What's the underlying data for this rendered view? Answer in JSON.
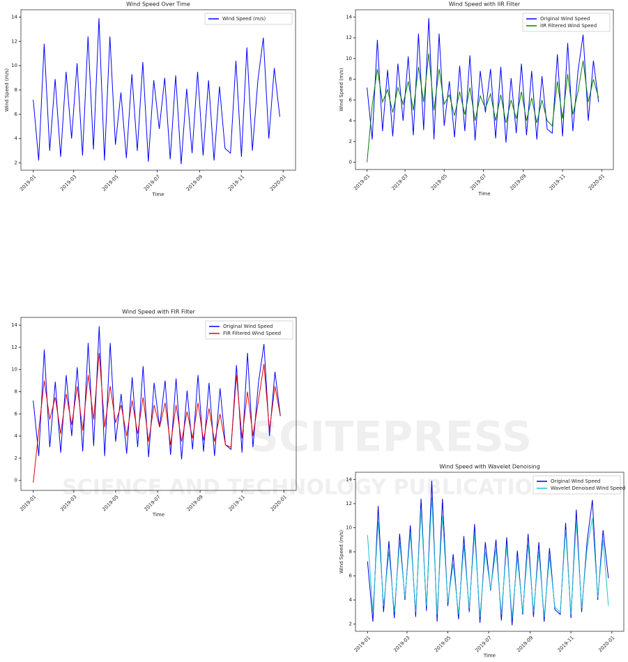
{
  "chart_data": [
    {
      "type": "line",
      "title": "Wind Speed Over Time",
      "xlabel": "Time",
      "ylabel": "Wind Speed (m/s)",
      "legend": "upper right",
      "x": [
        0,
        8,
        16,
        24,
        32,
        40,
        48,
        56,
        64,
        72,
        80,
        88,
        96,
        104,
        112,
        120,
        128,
        136,
        144,
        152,
        160,
        168,
        176,
        184,
        192,
        200,
        208,
        216,
        224,
        232,
        240,
        248,
        256,
        264,
        272,
        280,
        288,
        296,
        304,
        312,
        320,
        328,
        336,
        344,
        352,
        360
      ],
      "xlim": [
        -18,
        383
      ],
      "xticks": [
        {
          "value": 0,
          "label": "2019-01"
        },
        {
          "value": 59,
          "label": "2019-03"
        },
        {
          "value": 120,
          "label": "2019-05"
        },
        {
          "value": 181,
          "label": "2019-07"
        },
        {
          "value": 243,
          "label": "2019-09"
        },
        {
          "value": 304,
          "label": "2019-11"
        },
        {
          "value": 365,
          "label": "2020-01"
        }
      ],
      "ylim": [
        1.4,
        14.6
      ],
      "yticks": [
        2,
        4,
        6,
        8,
        10,
        12,
        14
      ],
      "series": [
        {
          "name": "Wind Speed (m/s)",
          "color": "#0000ff",
          "values": [
            7.2,
            2.2,
            11.8,
            3.0,
            8.9,
            2.5,
            9.5,
            4.0,
            10.2,
            2.6,
            12.4,
            3.1,
            13.9,
            2.2,
            12.4,
            3.5,
            7.8,
            2.4,
            9.3,
            3.0,
            10.3,
            2.1,
            8.8,
            4.8,
            9.0,
            2.3,
            9.2,
            1.9,
            8.1,
            2.8,
            9.5,
            2.6,
            8.8,
            2.2,
            8.3,
            3.2,
            2.8,
            10.4,
            2.5,
            11.5,
            3.0,
            8.8,
            12.3,
            4.0,
            9.8,
            5.8
          ]
        }
      ]
    },
    {
      "type": "line",
      "title": "Wind Speed with IIR Filter",
      "xlabel": "Time",
      "ylabel": "Wind Speed (m/s)",
      "legend": "upper right",
      "x": [
        0,
        8,
        16,
        24,
        32,
        40,
        48,
        56,
        64,
        72,
        80,
        88,
        96,
        104,
        112,
        120,
        128,
        136,
        144,
        152,
        160,
        168,
        176,
        184,
        192,
        200,
        208,
        216,
        224,
        232,
        240,
        248,
        256,
        264,
        272,
        280,
        288,
        296,
        304,
        312,
        320,
        328,
        336,
        344,
        352,
        360
      ],
      "xlim": [
        -18,
        383
      ],
      "xticks": [
        {
          "value": 0,
          "label": "2019-01"
        },
        {
          "value": 59,
          "label": "2019-03"
        },
        {
          "value": 120,
          "label": "2019-05"
        },
        {
          "value": 181,
          "label": "2019-07"
        },
        {
          "value": 243,
          "label": "2019-09"
        },
        {
          "value": 304,
          "label": "2019-11"
        },
        {
          "value": 365,
          "label": "2020-01"
        }
      ],
      "ylim": [
        -0.7,
        14.7
      ],
      "yticks": [
        0,
        2,
        4,
        6,
        8,
        10,
        12,
        14
      ],
      "series": [
        {
          "name": "Original Wind Speed",
          "color": "#0000ff",
          "values": [
            7.2,
            2.2,
            11.8,
            3.0,
            8.9,
            2.5,
            9.5,
            4.0,
            10.2,
            2.6,
            12.4,
            3.1,
            13.9,
            2.2,
            12.4,
            3.5,
            7.8,
            2.4,
            9.3,
            3.0,
            10.3,
            2.1,
            8.8,
            4.8,
            9.0,
            2.3,
            9.2,
            1.9,
            8.1,
            2.8,
            9.5,
            2.6,
            8.8,
            2.2,
            8.3,
            3.2,
            2.8,
            10.4,
            2.5,
            11.5,
            3.0,
            8.8,
            12.3,
            4.0,
            9.8,
            5.8
          ]
        },
        {
          "name": "IIR Filtered Wind Speed",
          "color": "#008000",
          "values": [
            0,
            5.5,
            9.0,
            5.8,
            7.0,
            4.8,
            7.2,
            5.6,
            7.8,
            5.0,
            9.2,
            5.8,
            10.5,
            5.0,
            9.0,
            5.6,
            6.5,
            4.5,
            6.8,
            4.6,
            7.2,
            4.0,
            6.4,
            5.2,
            6.6,
            4.0,
            6.5,
            3.8,
            6.0,
            4.2,
            6.8,
            4.0,
            6.2,
            3.8,
            6.0,
            4.0,
            3.5,
            7.8,
            4.2,
            8.5,
            4.6,
            6.8,
            9.8,
            5.8,
            8.0,
            6.2
          ]
        }
      ]
    },
    {
      "type": "line",
      "title": "Wind Speed with FIR Filter",
      "xlabel": "Time",
      "legend": "upper right",
      "x": [
        0,
        8,
        16,
        24,
        32,
        40,
        48,
        56,
        64,
        72,
        80,
        88,
        96,
        104,
        112,
        120,
        128,
        136,
        144,
        152,
        160,
        168,
        176,
        184,
        192,
        200,
        208,
        216,
        224,
        232,
        240,
        248,
        256,
        264,
        272,
        280,
        288,
        296,
        304,
        312,
        320,
        328,
        336,
        344,
        352,
        360
      ],
      "xlim": [
        -18,
        383
      ],
      "xticks": [
        {
          "value": 0,
          "label": "2019-01"
        },
        {
          "value": 59,
          "label": "2019-03"
        },
        {
          "value": 120,
          "label": "2019-05"
        },
        {
          "value": 181,
          "label": "2019-07"
        },
        {
          "value": 243,
          "label": "2019-09"
        },
        {
          "value": 304,
          "label": "2019-11"
        },
        {
          "value": 365,
          "label": "2020-01"
        }
      ],
      "ylim": [
        -0.9,
        14.7
      ],
      "yticks": [
        0,
        2,
        4,
        6,
        8,
        10,
        12,
        14
      ],
      "series": [
        {
          "name": "Original Wind Speed",
          "color": "#0000ff",
          "values": [
            7.2,
            2.2,
            11.8,
            3.0,
            8.9,
            2.5,
            9.5,
            4.0,
            10.2,
            2.6,
            12.4,
            3.1,
            13.9,
            2.2,
            12.4,
            3.5,
            7.8,
            2.4,
            9.3,
            3.0,
            10.3,
            2.1,
            8.8,
            4.8,
            9.0,
            2.3,
            9.2,
            1.9,
            8.1,
            2.8,
            9.5,
            2.6,
            8.8,
            2.2,
            8.3,
            3.2,
            2.8,
            10.4,
            2.5,
            11.5,
            3.0,
            8.8,
            12.3,
            4.0,
            9.8,
            5.8
          ]
        },
        {
          "name": "FIR Filtered Wind Speed",
          "color": "#e00000",
          "values": [
            -0.2,
            4.5,
            9.0,
            5.5,
            7.5,
            4.2,
            7.8,
            5.0,
            8.5,
            4.5,
            9.5,
            5.5,
            11.5,
            4.8,
            8.5,
            5.2,
            6.8,
            4.0,
            7.2,
            4.2,
            7.5,
            3.5,
            6.8,
            4.8,
            7.0,
            3.2,
            6.8,
            3.5,
            6.2,
            3.8,
            7.0,
            3.6,
            6.5,
            3.5,
            6.0,
            3.2,
            3.0,
            9.5,
            3.8,
            8.0,
            4.0,
            7.2,
            10.5,
            4.5,
            8.5,
            5.8
          ]
        }
      ]
    },
    {
      "type": "line",
      "title": "Wind Speed with Wavelet Denoising",
      "xlabel": "Time",
      "ylabel": "Wind Speed (m/s)",
      "legend": "upper right",
      "x": [
        0,
        8,
        16,
        24,
        32,
        40,
        48,
        56,
        64,
        72,
        80,
        88,
        96,
        104,
        112,
        120,
        128,
        136,
        144,
        152,
        160,
        168,
        176,
        184,
        192,
        200,
        208,
        216,
        224,
        232,
        240,
        248,
        256,
        264,
        272,
        280,
        288,
        296,
        304,
        312,
        320,
        328,
        336,
        344,
        352,
        360
      ],
      "xlim": [
        -18,
        383
      ],
      "xticks": [
        {
          "value": 0,
          "label": "2019-01"
        },
        {
          "value": 59,
          "label": "2019-03"
        },
        {
          "value": 120,
          "label": "2019-05"
        },
        {
          "value": 181,
          "label": "2019-07"
        },
        {
          "value": 243,
          "label": "2019-09"
        },
        {
          "value": 304,
          "label": "2019-11"
        },
        {
          "value": 365,
          "label": "2020-01"
        }
      ],
      "ylim": [
        1.4,
        14.6
      ],
      "yticks": [
        2,
        4,
        6,
        8,
        10,
        12,
        14
      ],
      "series": [
        {
          "name": "Original Wind Speed",
          "color": "#0000cd",
          "values": [
            7.2,
            2.2,
            11.8,
            3.0,
            8.9,
            2.5,
            9.5,
            4.0,
            10.2,
            2.6,
            12.4,
            3.1,
            13.9,
            2.2,
            12.4,
            3.5,
            7.8,
            2.4,
            9.3,
            3.0,
            10.3,
            2.1,
            8.8,
            4.8,
            9.0,
            2.3,
            9.2,
            1.9,
            8.1,
            2.8,
            9.5,
            2.6,
            8.8,
            2.2,
            8.3,
            3.2,
            2.8,
            10.4,
            2.5,
            11.5,
            3.0,
            8.8,
            12.3,
            4.0,
            9.8,
            5.8
          ]
        },
        {
          "name": "Wavelet Denoised Wind Speed",
          "color": "#20c0d0",
          "values": [
            9.4,
            3.0,
            10.5,
            3.5,
            8.0,
            3.0,
            8.8,
            4.2,
            9.5,
            3.0,
            11.5,
            3.5,
            12.5,
            2.8,
            11.0,
            3.8,
            7.0,
            2.8,
            8.5,
            3.3,
            9.5,
            2.6,
            8.0,
            4.9,
            8.2,
            2.8,
            8.5,
            2.5,
            7.5,
            3.0,
            8.6,
            3.0,
            8.0,
            2.6,
            7.6,
            3.4,
            3.0,
            9.8,
            2.8,
            10.5,
            3.3,
            8.2,
            10.8,
            4.2,
            9.0,
            3.5
          ]
        }
      ]
    }
  ],
  "watermark": {
    "brand": "SCITEPRESS",
    "tagline": "SCIENCE AND TECHNOLOGY PUBLICATIONS"
  }
}
